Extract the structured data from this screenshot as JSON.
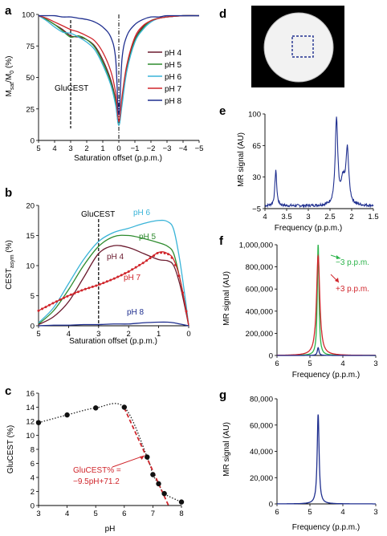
{
  "colors": {
    "pH 4": "#6b1a2e",
    "pH 5": "#2e8b2e",
    "pH 6": "#3ab4d8",
    "pH 7": "#d0252b",
    "pH 8": "#1f2f8f",
    "dark": "#222222",
    "green": "#2bb34a",
    "red": "#d0252b",
    "blue": "#1f2f8f"
  },
  "panels": {
    "a": {
      "label": "a",
      "xlabel": "Saturation offset (p.p.m.)",
      "ylabel": "M_sat/M_0 (%)",
      "xticks": [
        "5",
        "4",
        "3",
        "2",
        "1",
        "0",
        "−1",
        "−2",
        "−3",
        "−4",
        "−5"
      ],
      "yticks": [
        "0",
        "25",
        "50",
        "75",
        "100"
      ],
      "annotation": "GluCEST",
      "legend": [
        "pH 4",
        "pH 5",
        "pH 6",
        "pH 7",
        "pH 8"
      ]
    },
    "b": {
      "label": "b",
      "xlabel": "Saturation offset (p.p.m.)",
      "ylabel": "CEST_asym (%)",
      "xticks": [
        "5",
        "4",
        "3",
        "2",
        "1",
        "0"
      ],
      "yticks": [
        "0",
        "5",
        "10",
        "15",
        "20"
      ],
      "annotation": "GluCEST",
      "series_labels": [
        "pH 6",
        "pH 5",
        "pH 4",
        "pH 7",
        "pH 8"
      ]
    },
    "c": {
      "label": "c",
      "xlabel": "pH",
      "ylabel": "GluCEST (%)",
      "xticks": [
        "3",
        "4",
        "5",
        "6",
        "7",
        "8"
      ],
      "yticks": [
        "0",
        "2",
        "4",
        "6",
        "8",
        "10",
        "12",
        "14",
        "16"
      ],
      "fit_line1": "GluCEST% =",
      "fit_line2": "−9.5pH+71.2"
    },
    "d": {
      "label": "d"
    },
    "e": {
      "label": "e",
      "xlabel": "Frequency (p.p.m.)",
      "ylabel": "MR signal (AU)",
      "xticks": [
        "4",
        "3.5",
        "3",
        "2.5",
        "2",
        "1.5"
      ],
      "yticks": [
        "−5",
        "30",
        "65",
        "100"
      ]
    },
    "f": {
      "label": "f",
      "xlabel": "Frequency (p.p.m.)",
      "ylabel": "MR signal (AU)",
      "xticks": [
        "6",
        "5",
        "4",
        "3"
      ],
      "yticks": [
        "0",
        "200,000",
        "400,000",
        "600,000",
        "800,000",
        "1,000,000"
      ],
      "ann_green": "−3 p.p.m.",
      "ann_red": "+3 p.p.m."
    },
    "g": {
      "label": "g",
      "xlabel": "Frequency (p.p.m.)",
      "ylabel": "MR signal (AU)",
      "xticks": [
        "6",
        "5",
        "4",
        "3"
      ],
      "yticks": [
        "0",
        "20,000",
        "40,000",
        "60,000",
        "80,000"
      ]
    }
  },
  "chart_data": [
    {
      "panel": "a",
      "type": "line",
      "xlim": [
        5,
        -5
      ],
      "ylim": [
        0,
        100
      ],
      "series": [
        {
          "name": "pH 4",
          "x": [
            5,
            4.5,
            4,
            3.5,
            3,
            2.5,
            2,
            1.5,
            1,
            0.5,
            0.2,
            0,
            -0.2,
            -0.5,
            -1,
            -1.5,
            -2,
            -2.5,
            -3,
            -4,
            -5
          ],
          "y": [
            99,
            96,
            92,
            88,
            83,
            82,
            80,
            75,
            64,
            48,
            32,
            12,
            32,
            58,
            80,
            90,
            95,
            97,
            98,
            99,
            99
          ]
        },
        {
          "name": "pH 5",
          "x": [
            5,
            4.5,
            4,
            3.5,
            3,
            2.5,
            2,
            1.5,
            1,
            0.5,
            0.2,
            0,
            -0.2,
            -0.5,
            -1,
            -1.5,
            -2,
            -2.5,
            -3,
            -4,
            -5
          ],
          "y": [
            99,
            96,
            92,
            87,
            82,
            83,
            80,
            74,
            62,
            46,
            30,
            12,
            30,
            56,
            79,
            89,
            95,
            97,
            98,
            99,
            99
          ]
        },
        {
          "name": "pH 6",
          "x": [
            5,
            4.5,
            4,
            3.5,
            3,
            2.5,
            2,
            1.5,
            1,
            0.5,
            0.2,
            0,
            -0.2,
            -0.5,
            -1,
            -1.5,
            -2,
            -2.5,
            -3,
            -4,
            -5
          ],
          "y": [
            99,
            95,
            90,
            86,
            85,
            82,
            78,
            72,
            60,
            44,
            28,
            12,
            28,
            55,
            78,
            88,
            94,
            97,
            98,
            99,
            99
          ]
        },
        {
          "name": "pH 7",
          "x": [
            5,
            4.5,
            4,
            3.5,
            3,
            2.5,
            2,
            1.5,
            1,
            0.5,
            0.2,
            0,
            -0.2,
            -0.5,
            -1,
            -1.5,
            -2,
            -2.5,
            -3,
            -4,
            -5
          ],
          "y": [
            99,
            97,
            94,
            91,
            88,
            86,
            83,
            79,
            70,
            55,
            38,
            15,
            35,
            60,
            82,
            91,
            95,
            97,
            98,
            99,
            99
          ]
        },
        {
          "name": "pH 8",
          "x": [
            5,
            4.5,
            4,
            3.5,
            3,
            2.5,
            2,
            1.5,
            1,
            0.5,
            0.2,
            0,
            -0.2,
            -0.5,
            -1,
            -1.5,
            -2,
            -2.5,
            -3,
            -4,
            -5
          ],
          "y": [
            99,
            99,
            99,
            98,
            98,
            97,
            96,
            94,
            90,
            82,
            65,
            20,
            65,
            83,
            92,
            96,
            98,
            98,
            99,
            99,
            99
          ]
        }
      ]
    },
    {
      "panel": "b",
      "type": "line",
      "xlim": [
        5,
        0
      ],
      "ylim": [
        0,
        20
      ],
      "series": [
        {
          "name": "pH 6",
          "x": [
            5,
            4.5,
            4,
            3.5,
            3,
            2.5,
            2,
            1.5,
            1,
            0.7,
            0.5,
            0.3,
            0.1,
            0
          ],
          "y": [
            0.5,
            3,
            7,
            11,
            14,
            15.5,
            16.2,
            17,
            17.5,
            17.3,
            16,
            11,
            4,
            0
          ]
        },
        {
          "name": "pH 5",
          "x": [
            5,
            4.5,
            4,
            3.5,
            3,
            2.5,
            2,
            1.5,
            1,
            0.7,
            0.5,
            0.3,
            0.1,
            0
          ],
          "y": [
            0.3,
            2.5,
            6,
            10,
            13.2,
            14.8,
            15,
            14.5,
            13.8,
            13.2,
            12,
            8,
            3,
            0
          ]
        },
        {
          "name": "pH 4",
          "x": [
            5,
            4.5,
            4,
            3.5,
            3,
            2.5,
            2,
            1.5,
            1,
            0.7,
            0.5,
            0.3,
            0.1,
            0
          ],
          "y": [
            0.2,
            1.5,
            4,
            8,
            12,
            13.3,
            13,
            12,
            11,
            10.8,
            10,
            7,
            2.5,
            0
          ]
        },
        {
          "name": "pH 7",
          "x": [
            5,
            4.5,
            4,
            3.5,
            3,
            2.5,
            2,
            1.5,
            1,
            0.7,
            0.5,
            0.3,
            0.1,
            0
          ],
          "y": [
            2.5,
            3.8,
            5,
            6,
            6.8,
            7.8,
            9,
            10.5,
            12.2,
            12,
            11,
            8,
            3,
            0
          ]
        },
        {
          "name": "pH 8",
          "x": [
            5,
            4.5,
            4,
            3.5,
            3,
            2.5,
            2,
            1.5,
            1,
            0.7,
            0.5,
            0.3,
            0.1,
            0
          ],
          "y": [
            0,
            0.1,
            0.1,
            0.2,
            0.2,
            0.3,
            0.3,
            0.5,
            0.6,
            0.6,
            0.5,
            0.3,
            0.1,
            0
          ]
        }
      ]
    },
    {
      "panel": "c",
      "type": "scatter",
      "xlim": [
        3,
        8
      ],
      "ylim": [
        0,
        16
      ],
      "x": [
        3,
        4,
        5,
        6,
        6.8,
        7,
        7.2,
        7.4,
        8
      ],
      "y": [
        11.8,
        12.9,
        13.9,
        14.0,
        6.9,
        4.4,
        3.1,
        1.7,
        0.5
      ]
    },
    {
      "panel": "e",
      "type": "line",
      "xlim": [
        4,
        1.5
      ],
      "ylim": [
        -5,
        100
      ],
      "peaks_ppm": [
        3.75,
        2.35,
        2.1
      ],
      "peaks_val": [
        40,
        95,
        60
      ]
    },
    {
      "panel": "f",
      "type": "line",
      "xlim": [
        6,
        3
      ],
      "ylim": [
        0,
        1000000
      ],
      "series": [
        {
          "name": "−3 p.p.m.",
          "peak_ppm": 4.75,
          "peak": 1000000
        },
        {
          "name": "+3 p.p.m.",
          "peak_ppm": 4.75,
          "peak": 900000
        }
      ]
    },
    {
      "panel": "g",
      "type": "line",
      "xlim": [
        6,
        3
      ],
      "ylim": [
        0,
        80000
      ],
      "peak_ppm": 4.75,
      "peak": 68000
    }
  ]
}
